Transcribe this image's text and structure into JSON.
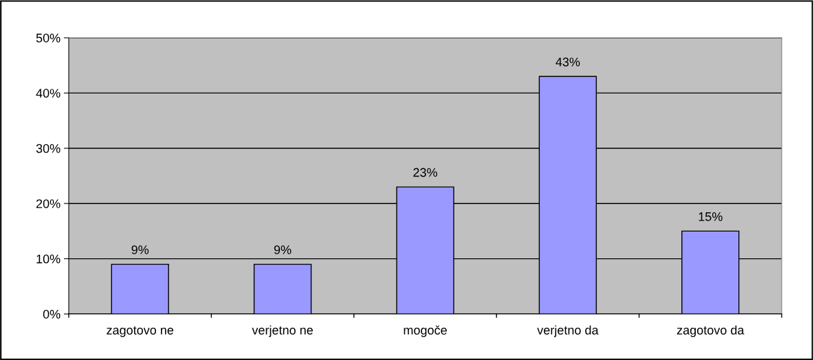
{
  "chart_data": {
    "type": "bar",
    "categories": [
      "zagotovo ne",
      "verjetno ne",
      "mogoče",
      "verjetno da",
      "zagotovo da"
    ],
    "values": [
      9,
      9,
      23,
      43,
      15
    ],
    "value_labels": [
      "9%",
      "9%",
      "23%",
      "43%",
      "15%"
    ],
    "color": "#9999ff",
    "ylim": [
      0,
      50
    ],
    "yticks": [
      {
        "value": 0,
        "label": "0%"
      },
      {
        "value": 10,
        "label": "10%"
      },
      {
        "value": 20,
        "label": "20%"
      },
      {
        "value": 30,
        "label": "30%"
      },
      {
        "value": 40,
        "label": "40%"
      },
      {
        "value": 50,
        "label": "50%"
      }
    ],
    "grid": "y",
    "legend": false
  }
}
